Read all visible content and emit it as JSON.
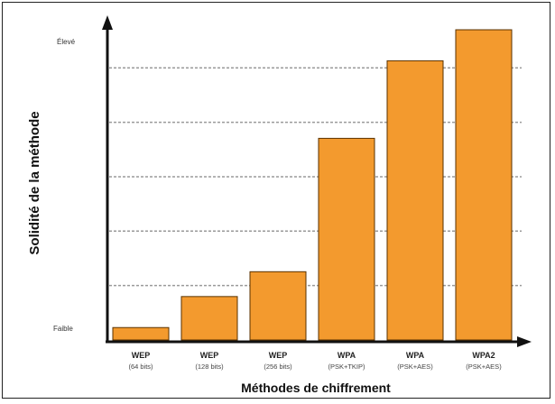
{
  "chart_data": {
    "type": "bar",
    "categories": [
      {
        "name": "WEP",
        "detail": "(64 bits)"
      },
      {
        "name": "WEP",
        "detail": "(128 bits)"
      },
      {
        "name": "WEP",
        "detail": "(256 bits)"
      },
      {
        "name": "WPA",
        "detail": "(PSK+TKIP)"
      },
      {
        "name": "WPA",
        "detail": "(PSK+AES)"
      },
      {
        "name": "WPA2",
        "detail": "(PSK+AES)"
      }
    ],
    "values": [
      4,
      14,
      22,
      65,
      90,
      100
    ],
    "ylim": [
      0,
      100
    ],
    "ylabel": "Solidité de la méthode",
    "xlabel": "Méthodes de chiffrement",
    "y_level_labels": {
      "low": "Faible",
      "high": "Élevé"
    },
    "grid": "dashed horizontal",
    "bar_color": "#F39A2E",
    "bar_edge_color": "#5a3200",
    "grid_color": "#9a9a9a"
  }
}
